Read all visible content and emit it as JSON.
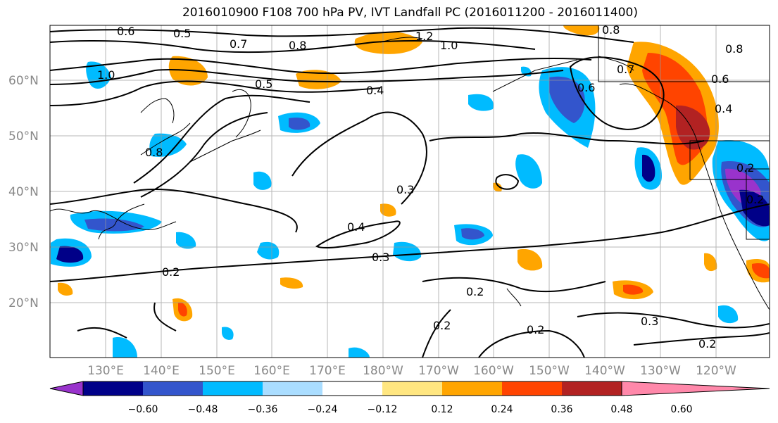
{
  "title": "2016010900 F108 700 hPa PV, IVT Landfall PC (2016011200 - 2016011400)",
  "lat_labels": [
    "60°N",
    "50°N",
    "40°N",
    "30°N",
    "20°N"
  ],
  "lon_labels": [
    "130°E",
    "140°E",
    "150°E",
    "160°E",
    "170°E",
    "180°W",
    "170°W",
    "160°W",
    "150°W",
    "140°W",
    "130°W",
    "120°W"
  ],
  "colorbar": {
    "ticks": [
      "−0.60",
      "−0.48",
      "−0.36",
      "−0.24",
      "−0.12",
      "0.12",
      "0.24",
      "0.36",
      "0.48",
      "0.60"
    ],
    "colors": [
      "#9933cc",
      "#000088",
      "#3355cc",
      "#00bbff",
      "#aaddff",
      "#ffffff",
      "#ffe680",
      "#ffa500",
      "#ff4400",
      "#b22222",
      "#ff88aa"
    ]
  },
  "contour_labels": [
    "0.6",
    "0.5",
    "0.7",
    "0.8",
    "1.2",
    "1.0",
    "0.8",
    "0.5",
    "0.4",
    "1.0",
    "0.8",
    "0.6",
    "0.7",
    "0.6",
    "0.4",
    "0.2",
    "0.3",
    "0.4",
    "0.3",
    "0.2",
    "0.2",
    "0.2",
    "0.2",
    "0.3",
    "0.2",
    "0.2",
    "0.8"
  ]
}
